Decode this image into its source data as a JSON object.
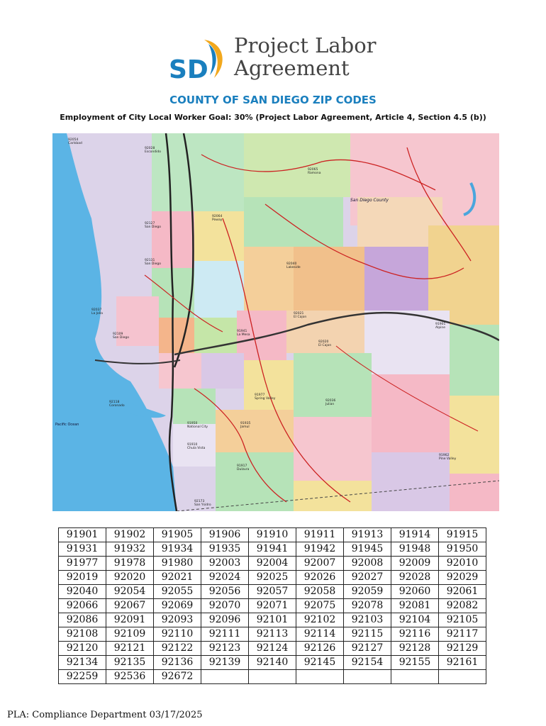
{
  "logo": {
    "mark": "SD",
    "line1": "Project Labor",
    "line2": "Agreement"
  },
  "header": {
    "title": "COUNTY OF SAN DIEGO ZIP CODES",
    "subtitle": "Employment of City Local Worker Goal: 30% (Project Labor Agreement, Article 4, Section 4.5 (b))"
  },
  "map": {
    "ocean_label": "Pacific Ocean",
    "county_label": "San Diego County",
    "place_labels": [
      {
        "zip": "92054",
        "name": "Carlsbad"
      },
      {
        "zip": "92028",
        "name": "Escondido"
      },
      {
        "zip": "92065",
        "name": "Ramona"
      },
      {
        "zip": "92064",
        "name": "Poway"
      },
      {
        "zip": "92127",
        "name": "San Diego"
      },
      {
        "zip": "92131",
        "name": "San Diego"
      },
      {
        "zip": "92040",
        "name": "Lakeside"
      },
      {
        "zip": "92021",
        "name": "El Cajon"
      },
      {
        "zip": "91901",
        "name": "Alpine"
      },
      {
        "zip": "92036",
        "name": "Julian"
      },
      {
        "zip": "92037",
        "name": "La Jolla"
      },
      {
        "zip": "92109",
        "name": "San Diego"
      },
      {
        "zip": "92020",
        "name": "El Cajon"
      },
      {
        "zip": "91941",
        "name": "La Mesa"
      },
      {
        "zip": "91977",
        "name": "Spring Valley"
      },
      {
        "zip": "92118",
        "name": "Coronado"
      },
      {
        "zip": "91950",
        "name": "National City"
      },
      {
        "zip": "91910",
        "name": "Chula Vista"
      },
      {
        "zip": "91935",
        "name": "Jamul"
      },
      {
        "zip": "91917",
        "name": "Dulzura"
      },
      {
        "zip": "92173",
        "name": "San Ysidro"
      },
      {
        "zip": "91962",
        "name": "Pine Valley"
      }
    ]
  },
  "zip_rows": [
    [
      "91901",
      "91902",
      "91905",
      "91906",
      "91910",
      "91911",
      "91913",
      "91914",
      "91915"
    ],
    [
      "91931",
      "91932",
      "91934",
      "91935",
      "91941",
      "91942",
      "91945",
      "91948",
      "91950"
    ],
    [
      "91977",
      "91978",
      "91980",
      "92003",
      "92004",
      "92007",
      "92008",
      "92009",
      "92010"
    ],
    [
      "92019",
      "92020",
      "92021",
      "92024",
      "92025",
      "92026",
      "92027",
      "92028",
      "92029"
    ],
    [
      "92040",
      "92054",
      "92055",
      "92056",
      "92057",
      "92058",
      "92059",
      "92060",
      "92061"
    ],
    [
      "92066",
      "92067",
      "92069",
      "92070",
      "92071",
      "92075",
      "92078",
      "92081",
      "92082"
    ],
    [
      "92086",
      "92091",
      "92093",
      "92096",
      "92101",
      "92102",
      "92103",
      "92104",
      "92105"
    ],
    [
      "92108",
      "92109",
      "92110",
      "92111",
      "92113",
      "92114",
      "92115",
      "92116",
      "92117"
    ],
    [
      "92120",
      "92121",
      "92122",
      "92123",
      "92124",
      "92126",
      "92127",
      "92128",
      "92129"
    ],
    [
      "92134",
      "92135",
      "92136",
      "92139",
      "92140",
      "92145",
      "92154",
      "92155",
      "92161"
    ],
    [
      "92259",
      "92536",
      "92672",
      "",
      "",
      "",
      "",
      "",
      ""
    ]
  ],
  "footer": {
    "text": "PLA: Compliance Department 03/17/2025"
  },
  "colors": {
    "title_blue": "#1a7fbe",
    "logo_blue": "#1a7fbe",
    "logo_gold": "#f2a81d",
    "ocean": "#5bb4e5"
  }
}
